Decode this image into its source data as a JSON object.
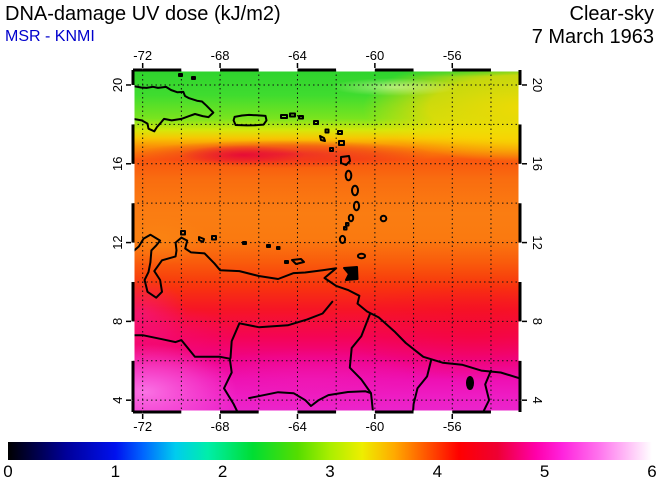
{
  "header": {
    "title": "DNA-damage UV dose (kJ/m2)",
    "source": "MSR - KNMI",
    "condition": "Clear-sky",
    "date": "7 March 1963"
  },
  "colorbar": {
    "min": 0,
    "max": 6,
    "labels": [
      "0",
      "1",
      "2",
      "3",
      "4",
      "5",
      "6"
    ],
    "gradient": [
      {
        "t": 0.0,
        "c": "#000000"
      },
      {
        "t": 0.09,
        "c": "#000099"
      },
      {
        "t": 0.167,
        "c": "#0011ee"
      },
      {
        "t": 0.21,
        "c": "#0066ff"
      },
      {
        "t": 0.26,
        "c": "#00ccee"
      },
      {
        "t": 0.31,
        "c": "#00eeaa"
      },
      {
        "t": 0.38,
        "c": "#00dd33"
      },
      {
        "t": 0.45,
        "c": "#55dd00"
      },
      {
        "t": 0.5,
        "c": "#aaee00"
      },
      {
        "t": 0.55,
        "c": "#eeee00"
      },
      {
        "t": 0.6,
        "c": "#ffaa00"
      },
      {
        "t": 0.65,
        "c": "#ff5500"
      },
      {
        "t": 0.7,
        "c": "#ff0000"
      },
      {
        "t": 0.76,
        "c": "#ee0033"
      },
      {
        "t": 0.82,
        "c": "#ff00aa"
      },
      {
        "t": 0.86,
        "c": "#ff22dd"
      },
      {
        "t": 0.92,
        "c": "#ff77ee"
      },
      {
        "t": 1.0,
        "c": "#ffffff"
      }
    ]
  },
  "chart_data": {
    "type": "heatmap",
    "title": "DNA-damage UV dose (kJ/m2)",
    "data_source": "MSR - KNMI",
    "sky_condition": "Clear-sky",
    "date": "7 March 1963",
    "units": "kJ/m2",
    "region": "Caribbean Sea and northern South America",
    "lon_range": [
      -72.5,
      -52.5
    ],
    "lat_range": [
      3.4,
      20.76
    ],
    "lon_ticks": [
      -72,
      -68,
      -64,
      -60,
      -56
    ],
    "lat_ticks": [
      4,
      8,
      12,
      16,
      20
    ],
    "lon_tick_labels": [
      "-72",
      "-68",
      "-64",
      "-60",
      "-56"
    ],
    "lat_tick_labels": [
      "4",
      "8",
      "12",
      "16",
      "20"
    ],
    "grid_step_deg": 2,
    "colorbar_range": [
      0,
      6
    ],
    "field_gradient": [
      {
        "t": 0.0,
        "c": "#2ed32e"
      },
      {
        "t": 0.073,
        "c": "#3fdc2f"
      },
      {
        "t": 0.142,
        "c": "#7ae41e"
      },
      {
        "t": 0.176,
        "c": "#d6e80a"
      },
      {
        "t": 0.199,
        "c": "#f7c703"
      },
      {
        "t": 0.222,
        "c": "#fa9406"
      },
      {
        "t": 0.263,
        "c": "#f9560e"
      },
      {
        "t": 0.32,
        "c": "#f96d10"
      },
      {
        "t": 0.418,
        "c": "#fa7d12"
      },
      {
        "t": 0.493,
        "c": "#fa7a10"
      },
      {
        "t": 0.562,
        "c": "#f95c0c"
      },
      {
        "t": 0.631,
        "c": "#f8350d"
      },
      {
        "t": 0.7,
        "c": "#f61525"
      },
      {
        "t": 0.781,
        "c": "#f40455"
      },
      {
        "t": 0.85,
        "c": "#ef038c"
      },
      {
        "t": 0.908,
        "c": "#ee10b4"
      },
      {
        "t": 0.954,
        "c": "#ee1cc4"
      },
      {
        "t": 1.0,
        "c": "#ea25cc"
      }
    ],
    "approx_dose_by_latitude": [
      {
        "lat": 20.5,
        "dose": 2.6
      },
      {
        "lat": 19.0,
        "dose": 2.8
      },
      {
        "lat": 18.0,
        "dose": 3.1
      },
      {
        "lat": 17.5,
        "dose": 3.4
      },
      {
        "lat": 16.3,
        "dose": 4.1
      },
      {
        "lat": 15.0,
        "dose": 3.7
      },
      {
        "lat": 13.0,
        "dose": 3.6
      },
      {
        "lat": 11.0,
        "dose": 3.9
      },
      {
        "lat": 9.0,
        "dose": 4.2
      },
      {
        "lat": 7.0,
        "dose": 4.5
      },
      {
        "lat": 5.0,
        "dose": 4.9
      },
      {
        "lat": 4.0,
        "dose": 5.3
      }
    ],
    "visible_features": [
      "Hispaniola",
      "Puerto Rico",
      "Virgin Islands",
      "Lesser Antilles",
      "Barbados",
      "Trinidad and Tobago",
      "Margarita",
      "Aruba",
      "Curacao",
      "Bonaire",
      "Lake Maracaibo",
      "Venezuela coast",
      "Guyana coast",
      "Suriname coast",
      "Orinoco River",
      "country borders"
    ]
  }
}
